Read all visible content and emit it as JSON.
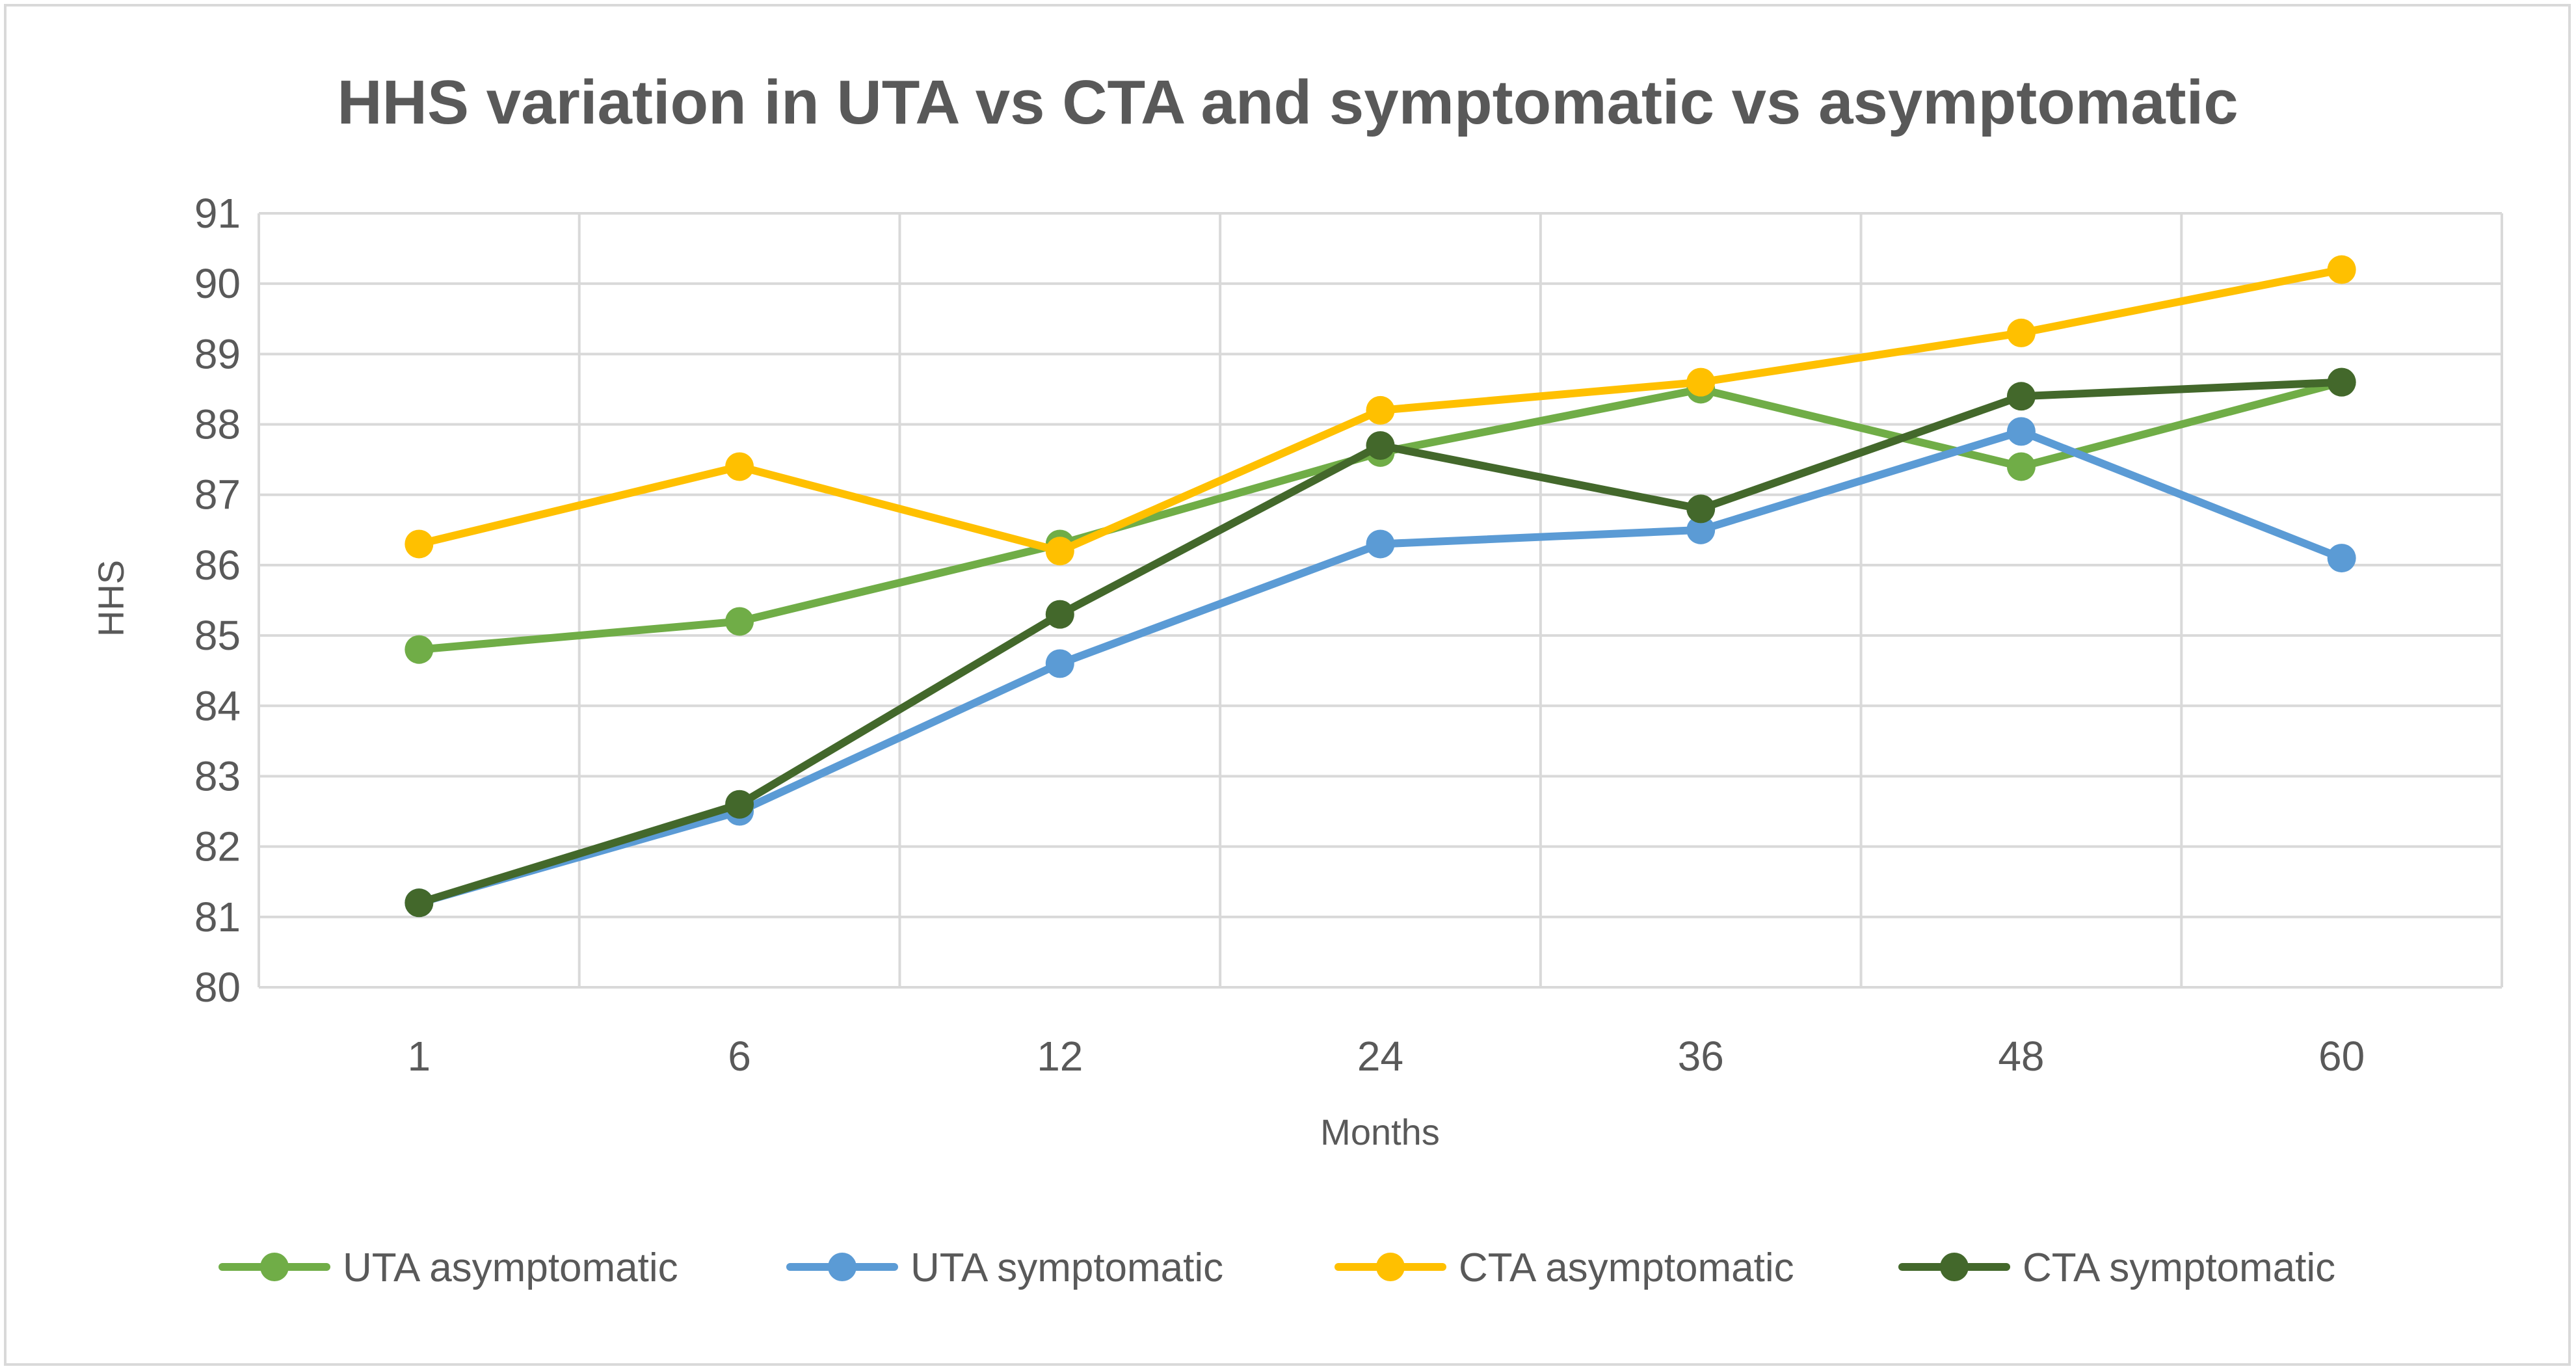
{
  "chart_data": {
    "type": "line",
    "title": "HHS variation in UTA vs CTA and symptomatic vs asymptomatic",
    "xlabel": "Months",
    "ylabel": "HHS",
    "categories": [
      "1",
      "6",
      "12",
      "24",
      "36",
      "48",
      "60"
    ],
    "ylim": [
      80,
      91
    ],
    "yticks": [
      "80",
      "81",
      "82",
      "83",
      "84",
      "85",
      "86",
      "87",
      "88",
      "89",
      "90",
      "91"
    ],
    "grid": true,
    "legend_position": "bottom",
    "series": [
      {
        "name": "UTA asymptomatic",
        "color": "#70ad47",
        "values": [
          84.8,
          85.2,
          86.3,
          87.6,
          88.5,
          87.4,
          88.6
        ]
      },
      {
        "name": "UTA symptomatic",
        "color": "#5b9bd5",
        "values": [
          81.2,
          82.5,
          84.6,
          86.3,
          86.5,
          87.9,
          86.1
        ]
      },
      {
        "name": "CTA asymptomatic",
        "color": "#ffc000",
        "values": [
          86.3,
          87.4,
          86.2,
          88.2,
          88.6,
          89.3,
          90.2
        ]
      },
      {
        "name": "CTA symptomatic",
        "color": "#43682b",
        "values": [
          81.2,
          82.6,
          85.3,
          87.7,
          86.8,
          88.4,
          88.6
        ]
      }
    ]
  }
}
